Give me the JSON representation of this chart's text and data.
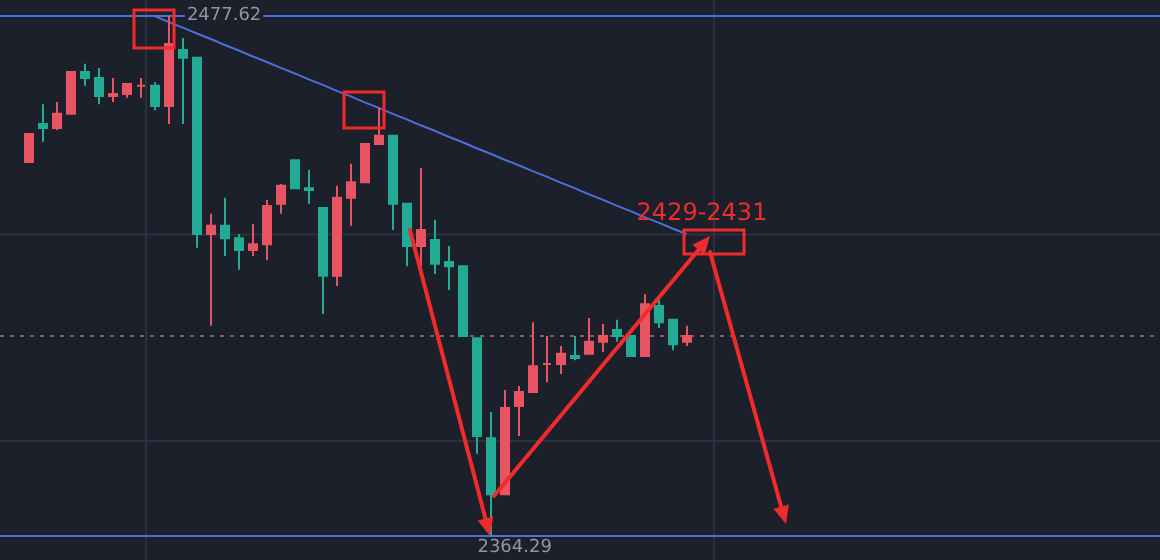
{
  "chart_data": {
    "type": "candlestick",
    "grid": "y",
    "ref_lines": [
      {
        "axis": "y",
        "value": 2477.62,
        "color": "#4d6fd8",
        "line_style": "solid"
      },
      {
        "axis": "y",
        "value": 2364.29,
        "color": "#4d6fd8",
        "line_style": "solid"
      },
      {
        "axis": "y",
        "value": 2407.9,
        "color": "#8a5a66",
        "line_style": "dotted"
      }
    ],
    "yticks": [
      {
        "value": 2385,
        "label": null
      },
      {
        "value": 2430,
        "label": null
      }
    ],
    "categories": [
      null,
      null,
      null,
      null,
      null,
      null,
      null,
      null,
      null,
      null,
      null,
      null,
      null,
      null,
      null,
      null,
      null,
      null,
      null,
      null,
      null,
      null,
      null,
      null,
      null,
      null,
      null,
      null,
      null,
      null,
      null,
      null,
      null,
      null,
      null,
      null,
      null,
      null,
      null,
      null,
      null,
      null,
      null,
      null,
      null,
      null,
      null,
      null
    ],
    "ohlc": [
      [
        2445.8,
        2451.9,
        2445.8,
        2451.9
      ],
      [
        2454.1,
        2458.4,
        2450.2,
        2453.2
      ],
      [
        2453.2,
        2458.9,
        2452.8,
        2456.3
      ],
      [
        2456.3,
        2465.4,
        2456.3,
        2465.4
      ],
      [
        2465.4,
        2467.2,
        2462.4,
        2464.1
      ],
      [
        2464.1,
        2466.3,
        2458.4,
        2460.2
      ],
      [
        2460.2,
        2464.1,
        2458.9,
        2460.6
      ],
      [
        2460.6,
        2462.8,
        2459.8,
        2462.8
      ],
      [
        2462.4,
        2464.1,
        2459.8,
        2462.4
      ],
      [
        2462.4,
        2463.2,
        2457.1,
        2458.0
      ],
      [
        2458.0,
        2477.62,
        2454.1,
        2471.5
      ],
      [
        2470.2,
        2472.8,
        2454.1,
        2468.5
      ],
      [
        2468.5,
        2468.5,
        2427.1,
        2430.1
      ],
      [
        2430.1,
        2434.5,
        2410.1,
        2431.9
      ],
      [
        2431.9,
        2438.0,
        2425.3,
        2429.2
      ],
      [
        2429.2,
        2430.1,
        2422.3,
        2426.6
      ],
      [
        2426.6,
        2432.3,
        2425.3,
        2427.9
      ],
      [
        2427.9,
        2437.5,
        2424.4,
        2436.2
      ],
      [
        2436.7,
        2441.0,
        2434.5,
        2440.6
      ],
      [
        2446.2,
        2446.2,
        2440.1,
        2440.1
      ],
      [
        2440.1,
        2444.1,
        2436.7,
        2439.7
      ],
      [
        2435.8,
        2435.8,
        2412.7,
        2421.0
      ],
      [
        2421.0,
        2440.6,
        2418.8,
        2438.0
      ],
      [
        2438.0,
        2445.4,
        2431.9,
        2441.4
      ],
      [
        2441.4,
        2449.7,
        2441.4,
        2449.7
      ],
      [
        2449.7,
        2457.6,
        2449.7,
        2451.5
      ],
      [
        2451.5,
        2451.5,
        2431.0,
        2436.7
      ],
      [
        2436.7,
        2436.7,
        2423.1,
        2427.5
      ],
      [
        2427.5,
        2444.5,
        2423.1,
        2431.0
      ],
      [
        2428.8,
        2433.2,
        2421.4,
        2423.6
      ],
      [
        2424.0,
        2427.5,
        2417.9,
        2423.1
      ],
      [
        2423.1,
        2423.1,
        2407.9,
        2407.9
      ],
      [
        2407.4,
        2407.4,
        2382.2,
        2386.1
      ],
      [
        2385.6,
        2391.3,
        2364.29,
        2373.4
      ],
      [
        2373.4,
        2396.1,
        2373.4,
        2392.2
      ],
      [
        2392.6,
        2397.0,
        2386.1,
        2395.7
      ],
      [
        2395.7,
        2410.9,
        2395.7,
        2401.3
      ],
      [
        2401.8,
        2407.9,
        2397.8,
        2401.8
      ],
      [
        2401.8,
        2405.7,
        2399.6,
        2404.0
      ],
      [
        2403.5,
        2407.9,
        2402.6,
        2403.1
      ],
      [
        2404.0,
        2411.8,
        2404.0,
        2406.6
      ],
      [
        2406.6,
        2410.5,
        2404.4,
        2407.9
      ],
      [
        2409.2,
        2411.4,
        2406.6,
        2407.9
      ],
      [
        2407.9,
        2407.9,
        2403.5,
        2403.5
      ],
      [
        2403.5,
        2417.0,
        2403.5,
        2414.8
      ],
      [
        2414.4,
        2416.2,
        2409.6,
        2410.9
      ],
      [
        2411.4,
        2411.4,
        2404.8,
        2406.1
      ],
      [
        2406.6,
        2410.1,
        2405.7,
        2407.9
      ]
    ],
    "colors": [
      "#e95463",
      "#22ab94",
      "#e95463",
      "#e95463",
      "#22ab94",
      "#22ab94",
      "#e95463",
      "#e95463",
      "#e95463",
      "#22ab94",
      "#e95463",
      "#22ab94",
      "#22ab94",
      "#e95463",
      "#22ab94",
      "#22ab94",
      "#e95463",
      "#e95463",
      "#e95463",
      "#22ab94",
      "#22ab94",
      "#22ab94",
      "#e95463",
      "#e95463",
      "#e95463",
      "#e95463",
      "#22ab94",
      "#22ab94",
      "#e95463",
      "#22ab94",
      "#22ab94",
      "#22ab94",
      "#22ab94",
      "#22ab94",
      "#e95463",
      "#e95463",
      "#e95463",
      "#e95463",
      "#e95463",
      "#22ab94",
      "#e95463",
      "#e95463",
      "#22ab94",
      "#22ab94",
      "#e95463",
      "#22ab94",
      "#22ab94",
      "#e95463"
    ],
    "series": [
      {
        "type": "line",
        "color": "#4d6fd8",
        "values": [
          null,
          null,
          null,
          null,
          null,
          null,
          null,
          null,
          null,
          2477.6,
          2476.3,
          2475.1,
          2473.8,
          2472.6,
          2471.3,
          2470.1,
          2468.8,
          2467.6,
          2466.3,
          2465.1,
          2463.8,
          2462.6,
          2461.3,
          2460.1,
          2458.8,
          2457.6,
          2456.3,
          2455.1,
          2453.8,
          2452.6,
          2451.3,
          2450.1,
          2448.8,
          2447.6,
          2446.3,
          2445.1,
          2443.8,
          2442.6,
          2441.3,
          2440.1,
          2438.8,
          2437.6,
          2436.3,
          2435.1,
          2433.8,
          2432.6,
          2431.3,
          2430.1
        ]
      }
    ],
    "annotations": [
      "2477.62",
      "2364.29",
      "2429-2431"
    ]
  }
}
